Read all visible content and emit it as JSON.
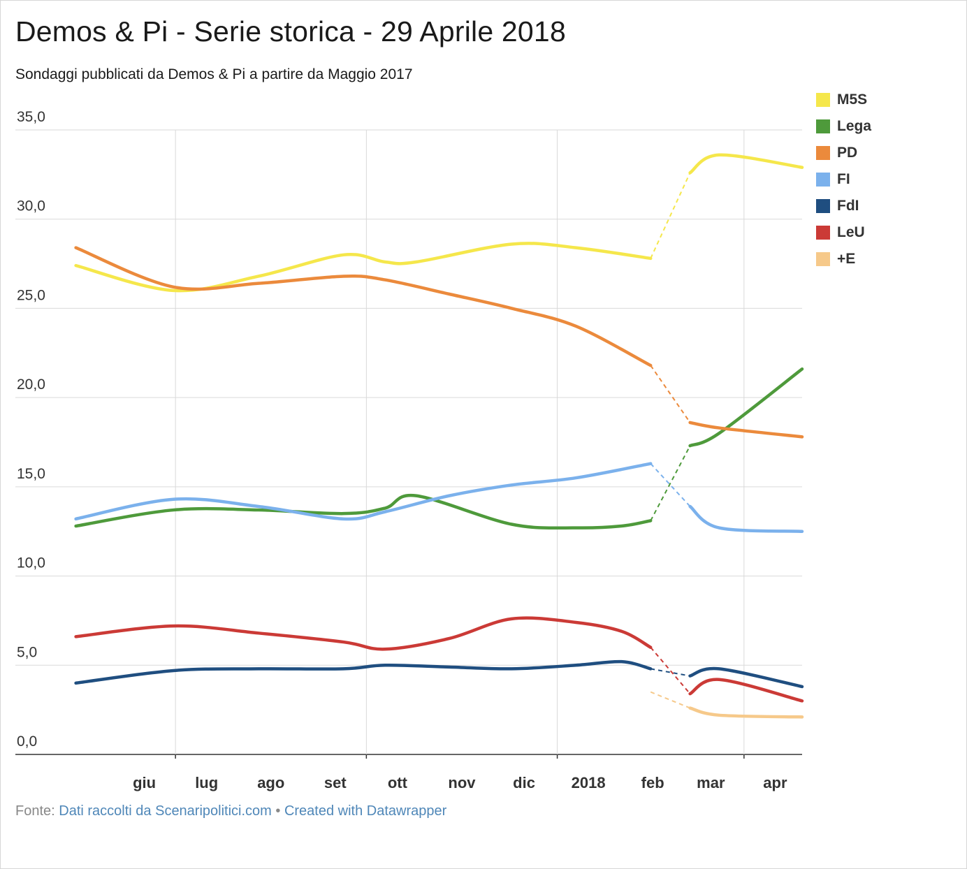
{
  "title": "Demos & Pi - Serie storica - 29 Aprile 2018",
  "subtitle": "Sondaggi pubblicati da Demos & Pi a partire da Maggio 2017",
  "footer": {
    "prefix": "Fonte: ",
    "source_link": "Dati raccolti da Scenaripolitici.com",
    "separator": " • ",
    "credit_link": "Created with Datawrapper"
  },
  "chart_data": {
    "type": "line",
    "y_ticks": [
      "0,0",
      "5,0",
      "10,0",
      "15,0",
      "20,0",
      "25,0",
      "30,0",
      "35,0"
    ],
    "ylim": [
      0,
      35
    ],
    "x_ticks": [
      "giu",
      "lug",
      "ago",
      "set",
      "ott",
      "nov",
      "dic",
      "2018",
      "feb",
      "mar",
      "apr"
    ],
    "x_range": [
      "2017-05-14",
      "2018-04-29"
    ],
    "grid": true,
    "legend_position": "right",
    "gap_segment": {
      "from": "2018-02-15",
      "to": "2018-03-06",
      "style": "dashed"
    },
    "series": [
      {
        "name": "M5S",
        "color": "#f5e74b",
        "points": [
          [
            "2017-05-14",
            27.4
          ],
          [
            "2017-06-30",
            26.0
          ],
          [
            "2017-08-10",
            26.8
          ],
          [
            "2017-09-20",
            28.0
          ],
          [
            "2017-10-10",
            27.6
          ],
          [
            "2017-10-25",
            27.6
          ],
          [
            "2017-12-10",
            28.6
          ],
          [
            "2018-01-10",
            28.4
          ],
          [
            "2018-02-15",
            27.8
          ],
          [
            "2018-03-06",
            32.6
          ],
          [
            "2018-03-20",
            33.6
          ],
          [
            "2018-04-29",
            32.9
          ]
        ]
      },
      {
        "name": "Lega",
        "color": "#4e9a3b",
        "points": [
          [
            "2017-05-14",
            12.8
          ],
          [
            "2017-06-30",
            13.7
          ],
          [
            "2017-08-10",
            13.7
          ],
          [
            "2017-09-20",
            13.5
          ],
          [
            "2017-10-10",
            13.8
          ],
          [
            "2017-10-25",
            14.5
          ],
          [
            "2017-12-10",
            12.9
          ],
          [
            "2018-01-10",
            12.7
          ],
          [
            "2018-02-01",
            12.8
          ],
          [
            "2018-02-15",
            13.1
          ],
          [
            "2018-03-06",
            17.3
          ],
          [
            "2018-03-20",
            18.0
          ],
          [
            "2018-04-29",
            21.6
          ]
        ]
      },
      {
        "name": "PD",
        "color": "#eb8a3c",
        "points": [
          [
            "2017-05-14",
            28.4
          ],
          [
            "2017-06-30",
            26.2
          ],
          [
            "2017-08-10",
            26.4
          ],
          [
            "2017-09-20",
            26.8
          ],
          [
            "2017-10-10",
            26.6
          ],
          [
            "2017-11-10",
            25.8
          ],
          [
            "2017-12-10",
            25.0
          ],
          [
            "2018-01-10",
            24.0
          ],
          [
            "2018-02-15",
            21.8
          ],
          [
            "2018-03-06",
            18.6
          ],
          [
            "2018-03-20",
            18.3
          ],
          [
            "2018-04-29",
            17.8
          ]
        ]
      },
      {
        "name": "FI",
        "color": "#7bb1ec",
        "points": [
          [
            "2017-05-14",
            13.2
          ],
          [
            "2017-06-30",
            14.3
          ],
          [
            "2017-08-10",
            13.9
          ],
          [
            "2017-09-20",
            13.2
          ],
          [
            "2017-10-10",
            13.6
          ],
          [
            "2017-11-10",
            14.5
          ],
          [
            "2017-12-10",
            15.1
          ],
          [
            "2018-01-10",
            15.5
          ],
          [
            "2018-02-15",
            16.3
          ],
          [
            "2018-03-06",
            13.9
          ],
          [
            "2018-03-20",
            12.7
          ],
          [
            "2018-04-29",
            12.5
          ]
        ]
      },
      {
        "name": "FdI",
        "color": "#1f4e80",
        "points": [
          [
            "2017-05-14",
            4.0
          ],
          [
            "2017-06-30",
            4.7
          ],
          [
            "2017-08-10",
            4.8
          ],
          [
            "2017-09-20",
            4.8
          ],
          [
            "2017-10-10",
            5.0
          ],
          [
            "2017-11-10",
            4.9
          ],
          [
            "2017-12-10",
            4.8
          ],
          [
            "2018-01-10",
            5.0
          ],
          [
            "2018-02-01",
            5.2
          ],
          [
            "2018-02-15",
            4.8
          ],
          [
            "2018-03-06",
            4.4
          ],
          [
            "2018-03-20",
            4.8
          ],
          [
            "2018-04-29",
            3.8
          ]
        ]
      },
      {
        "name": "LeU",
        "color": "#cb3a36",
        "points": [
          [
            "2017-06-20",
            null
          ],
          [
            "2017-05-14",
            6.6
          ],
          [
            "2017-06-30",
            7.2
          ],
          [
            "2017-08-10",
            6.8
          ],
          [
            "2017-09-20",
            6.3
          ],
          [
            "2017-10-10",
            5.9
          ],
          [
            "2017-11-10",
            6.5
          ],
          [
            "2017-12-10",
            7.6
          ],
          [
            "2018-01-10",
            7.4
          ],
          [
            "2018-02-01",
            6.9
          ],
          [
            "2018-02-15",
            6.0
          ],
          [
            "2018-03-06",
            3.4
          ],
          [
            "2018-03-20",
            4.2
          ],
          [
            "2018-04-29",
            3.0
          ]
        ]
      },
      {
        "name": "+E",
        "color": "#f6c98a",
        "points": [
          [
            "2018-02-15",
            3.5
          ],
          [
            "2018-03-06",
            2.6
          ],
          [
            "2018-03-20",
            2.2
          ],
          [
            "2018-04-29",
            2.1
          ]
        ]
      }
    ]
  }
}
